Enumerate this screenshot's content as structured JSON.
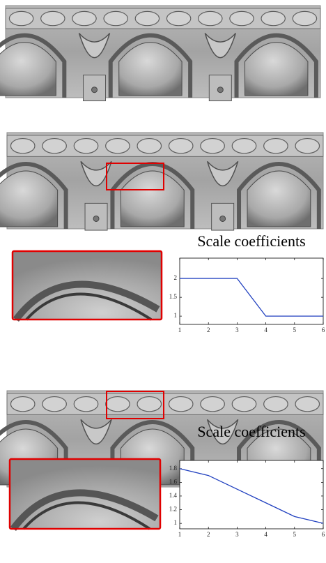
{
  "chart_data": [
    {
      "type": "line",
      "title": "Scale coefficients",
      "x": [
        1,
        2,
        3,
        4,
        5,
        6
      ],
      "values": [
        2,
        2,
        2,
        1,
        1,
        1
      ],
      "color": "#1f3fbf",
      "xlim": [
        1,
        6
      ],
      "xticks": [
        1,
        2,
        3,
        4,
        5,
        6
      ],
      "ylim": [
        0.78,
        2.54
      ],
      "yticks": [
        1,
        1.5,
        2
      ]
    },
    {
      "type": "line",
      "title": "Scale coefficients",
      "x": [
        1,
        2,
        3,
        4,
        5,
        6
      ],
      "values": [
        1.8,
        1.7,
        1.5,
        1.3,
        1.1,
        1.0
      ],
      "color": "#1f3fbf",
      "xlim": [
        1,
        6
      ],
      "xticks": [
        1,
        2,
        3,
        4,
        5,
        6
      ],
      "ylim": [
        0.92,
        1.92
      ],
      "yticks": [
        1,
        1.2,
        1.4,
        1.6,
        1.8
      ]
    }
  ]
}
